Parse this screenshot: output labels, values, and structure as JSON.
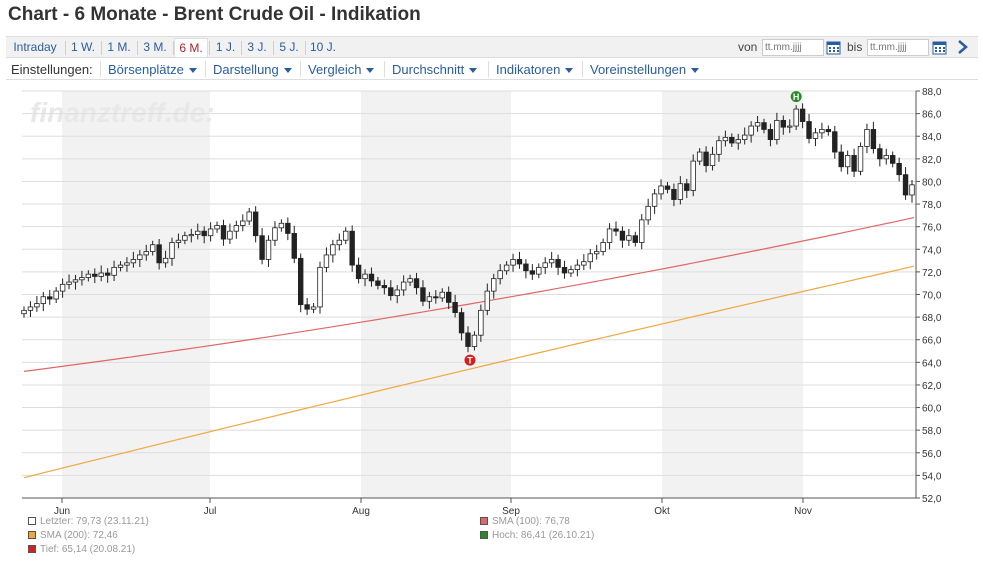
{
  "page": {
    "title": "Chart - 6 Monate - Brent Crude Oil - Indikation"
  },
  "range_tabs": [
    "Intraday",
    "1 W.",
    "1 M.",
    "3 M.",
    "6 M.",
    "1 J.",
    "3 J.",
    "5 J.",
    "10 J."
  ],
  "active_range": "6 M.",
  "date_filter": {
    "from_label": "von",
    "to_label": "bis",
    "from_placeholder": "tt.mm.jjjj",
    "to_placeholder": "tt.mm.jjjj"
  },
  "settings": {
    "label": "Einstellungen:",
    "menus": [
      "Börsenplätze",
      "Darstellung",
      "Vergleich",
      "Durchschnitt",
      "Indikatoren",
      "Voreinstellungen"
    ]
  },
  "watermark": "finanztreff.de:",
  "colors": {
    "sma100": "#e06767",
    "sma200": "#f0a63c",
    "up": "#ffffff",
    "down": "#222222",
    "band": "#f2f2f2",
    "high_marker": "#2a8a2a",
    "low_marker": "#d42020"
  },
  "markers": {
    "high_letter": "H",
    "low_letter": "T"
  },
  "chart_data": {
    "type": "candlestick",
    "x_labels": [
      "Jun",
      "Jul",
      "Aug",
      "Sep",
      "Okt",
      "Nov"
    ],
    "y_ticks": [
      "52,0",
      "54,0",
      "56,0",
      "58,0",
      "60,0",
      "62,0",
      "64,0",
      "66,0",
      "68,0",
      "70,0",
      "72,0",
      "74,0",
      "76,0",
      "78,0",
      "80,0",
      "82,0",
      "84,0",
      "86,0",
      "88,0"
    ],
    "ylim": [
      52,
      88
    ],
    "close": [
      68.6,
      68.9,
      69.2,
      69.8,
      69.6,
      70.3,
      70.9,
      71.1,
      71.3,
      71.5,
      71.8,
      71.6,
      71.9,
      71.7,
      72.4,
      72.6,
      72.8,
      73.1,
      73.5,
      73.8,
      74.4,
      72.8,
      73.2,
      74.6,
      74.8,
      75.2,
      75.3,
      75.6,
      75.2,
      75.8,
      76.1,
      74.9,
      75.6,
      76.1,
      76.5,
      77.3,
      75.2,
      73.1,
      74.8,
      75.9,
      76.3,
      75.4,
      73.2,
      69.1,
      68.7,
      68.9,
      72.4,
      73.5,
      74.4,
      74.8,
      75.6,
      72.6,
      71.4,
      71.8,
      71.2,
      70.8,
      70.6,
      69.9,
      70.4,
      71.1,
      71.4,
      70.6,
      69.4,
      69.8,
      69.7,
      70.2,
      69.3,
      68.4,
      66.6,
      65.4,
      66.4,
      68.6,
      70.3,
      71.4,
      72.1,
      72.6,
      73.1,
      72.7,
      72.1,
      71.8,
      72.4,
      72.8,
      73.1,
      72.4,
      71.9,
      72.2,
      72.6,
      72.9,
      73.6,
      73.8,
      74.6,
      75.8,
      75.6,
      74.8,
      75.2,
      74.6,
      76.6,
      77.8,
      78.9,
      79.6,
      79.3,
      78.4,
      79.8,
      79.2,
      81.8,
      82.6,
      81.4,
      82.4,
      83.6,
      83.9,
      83.4,
      83.7,
      84.1,
      84.9,
      85.2,
      84.6,
      83.7,
      85.4,
      84.8,
      84.9,
      86.4,
      85.3,
      83.8,
      84.3,
      84.6,
      84.4,
      82.6,
      81.3,
      82.3,
      80.9,
      83.1,
      84.6,
      82.9,
      82.0,
      82.3,
      81.6,
      80.6,
      78.8,
      79.7
    ]
  },
  "legend": {
    "last": "Letzter: 79,73 (23.11.21)",
    "sma200": "SMA (200): 72,46",
    "low": "Tief: 65,14 (20.08.21)",
    "sma100": "SMA (100): 76,78",
    "high": "Hoch: 86,41 (26.10.21)"
  }
}
